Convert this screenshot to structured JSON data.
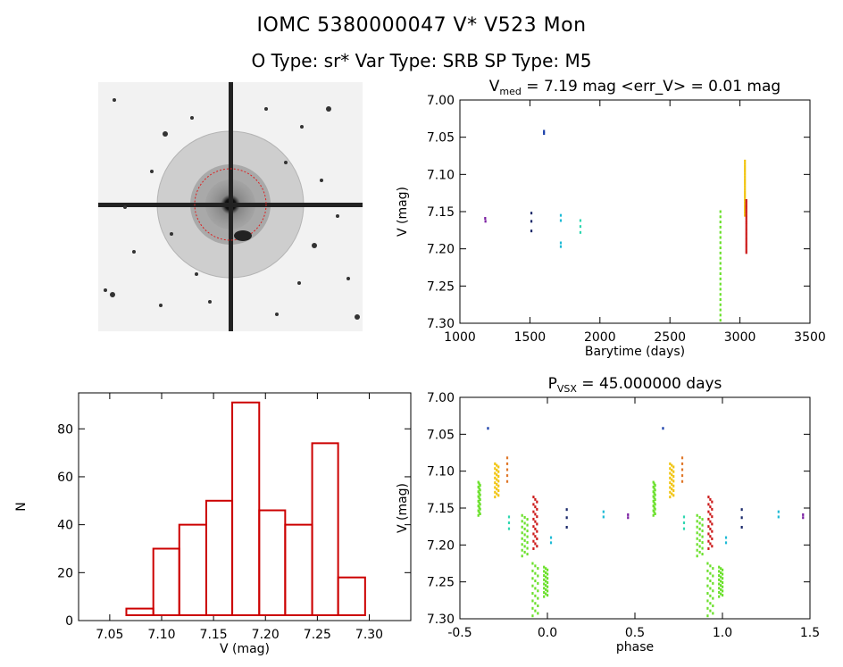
{
  "header": {
    "line1": "IOMC 5380000047     V* V523 Mon",
    "line2": "O Type: sr*  Var Type: SRB  SP Type: M5"
  },
  "image_stamp": {
    "top_left_label": "",
    "target_label": "",
    "bottom_label": ""
  },
  "colors": {
    "histogram": "#cc0000",
    "axis": "#000000",
    "purple": "#7b1fa2",
    "blue": "#1a3faa",
    "navy": "#1b2a6b",
    "cyan": "#1fbbd6",
    "teal": "#2fd7b0",
    "green": "#6ae02a",
    "yellow": "#f1c40f",
    "orange": "#e0782a",
    "red": "#cc1a1a"
  },
  "chart_data": [
    {
      "id": "lightcurve",
      "type": "scatter",
      "title": "V_med = 7.19 mag <err_V> = 0.01 mag",
      "title_parts": {
        "v": "V",
        "sub": "med",
        "rest": " = 7.19 mag <err_V> = 0.01 mag"
      },
      "xlabel": "Barytime (days)",
      "ylabel": "V (mag)",
      "xlim": [
        1000,
        3500
      ],
      "ylim": [
        7.3,
        7.0
      ],
      "xticks": [
        1000,
        1500,
        2000,
        2500,
        3000,
        3500
      ],
      "yticks": [
        7.0,
        7.05,
        7.1,
        7.15,
        7.2,
        7.25,
        7.3
      ],
      "series": [
        {
          "color": "#7b1fa2",
          "points": [
            [
              1180,
              7.159
            ],
            [
              1182,
              7.163
            ]
          ]
        },
        {
          "color": "#1b2a6b",
          "points": [
            [
              1510,
              7.152
            ],
            [
              1510,
              7.163
            ],
            [
              1510,
              7.176
            ]
          ]
        },
        {
          "color": "#1a3faa",
          "points": [
            [
              1600,
              7.042
            ],
            [
              1600,
              7.045
            ]
          ]
        },
        {
          "color": "#1fbbd6",
          "points": [
            [
              1720,
              7.155
            ],
            [
              1720,
              7.162
            ],
            [
              1720,
              7.192
            ],
            [
              1720,
              7.197
            ]
          ]
        },
        {
          "color": "#2fd7b0",
          "points": [
            [
              1860,
              7.162
            ],
            [
              1860,
              7.17
            ],
            [
              1860,
              7.178
            ]
          ]
        },
        {
          "color": "#6ae02a",
          "range": [
            2860,
            7.15,
            7.296,
            0.002
          ]
        },
        {
          "color": "#f1c40f",
          "range": [
            3035,
            7.082,
            7.155,
            0.002
          ]
        },
        {
          "color": "#cc1a1a",
          "range": [
            3045,
            7.135,
            7.205,
            0.002
          ]
        }
      ]
    },
    {
      "id": "histogram",
      "type": "bar",
      "title": "",
      "xlabel": "V (mag)",
      "ylabel": "N",
      "bin_edges": [
        7.041,
        7.066,
        7.092,
        7.117,
        7.143,
        7.168,
        7.194,
        7.219,
        7.245,
        7.27,
        7.296,
        7.321
      ],
      "values": [
        2,
        5,
        30,
        40,
        50,
        91,
        46,
        40,
        74,
        18,
        1
      ],
      "xlim": [
        7.02,
        7.34
      ],
      "ylim": [
        0,
        95
      ],
      "xticks": [
        7.05,
        7.1,
        7.15,
        7.2,
        7.25,
        7.3
      ],
      "yticks": [
        0,
        20,
        40,
        60,
        80
      ]
    },
    {
      "id": "phased",
      "type": "scatter",
      "title": "P_VSX = 45.000000 days",
      "title_parts": {
        "v": "P",
        "sub": "VSX",
        "rest": " = 45.000000 days"
      },
      "xlabel": "phase",
      "ylabel": "V (mag)",
      "xlim": [
        -0.5,
        1.5
      ],
      "ylim": [
        7.3,
        7.0
      ],
      "xticks": [
        -0.5,
        0.0,
        0.5,
        1.0,
        1.5
      ],
      "yticks": [
        7.0,
        7.05,
        7.1,
        7.15,
        7.2,
        7.25,
        7.3
      ],
      "groups": [
        {
          "color": "#1a3faa",
          "points": [
            [
              -0.34,
              7.042
            ]
          ]
        },
        {
          "color": "#f1c40f",
          "range": [
            -0.29,
            7.09,
            7.135,
            0.02
          ]
        },
        {
          "color": "#e0782a",
          "points": [
            [
              -0.23,
              7.082
            ],
            [
              -0.23,
              7.09
            ],
            [
              -0.23,
              7.098
            ],
            [
              -0.23,
              7.106
            ],
            [
              -0.23,
              7.114
            ]
          ]
        },
        {
          "color": "#6ae02a",
          "range": [
            -0.39,
            7.115,
            7.16,
            0.01
          ]
        },
        {
          "color": "#2fd7b0",
          "points": [
            [
              -0.22,
              7.162
            ],
            [
              -0.22,
              7.17
            ],
            [
              -0.22,
              7.178
            ]
          ]
        },
        {
          "color": "#6ae02a",
          "range": [
            -0.13,
            7.16,
            7.215,
            0.03
          ]
        },
        {
          "color": "#cc1a1a",
          "range": [
            -0.07,
            7.135,
            7.205,
            0.02
          ]
        },
        {
          "color": "#6ae02a",
          "range": [
            -0.07,
            7.225,
            7.296,
            0.03
          ]
        },
        {
          "color": "#6ae02a",
          "range": [
            -0.01,
            7.23,
            7.27,
            0.02
          ]
        },
        {
          "color": "#1fbbd6",
          "points": [
            [
              0.02,
              7.19
            ],
            [
              0.02,
              7.197
            ]
          ]
        },
        {
          "color": "#1b2a6b",
          "points": [
            [
              0.11,
              7.152
            ],
            [
              0.11,
              7.163
            ],
            [
              0.11,
              7.176
            ]
          ]
        },
        {
          "color": "#1fbbd6",
          "points": [
            [
              0.32,
              7.155
            ],
            [
              0.32,
              7.162
            ]
          ]
        },
        {
          "color": "#7b1fa2",
          "points": [
            [
              0.46,
              7.159
            ],
            [
              0.46,
              7.163
            ]
          ]
        }
      ]
    }
  ]
}
